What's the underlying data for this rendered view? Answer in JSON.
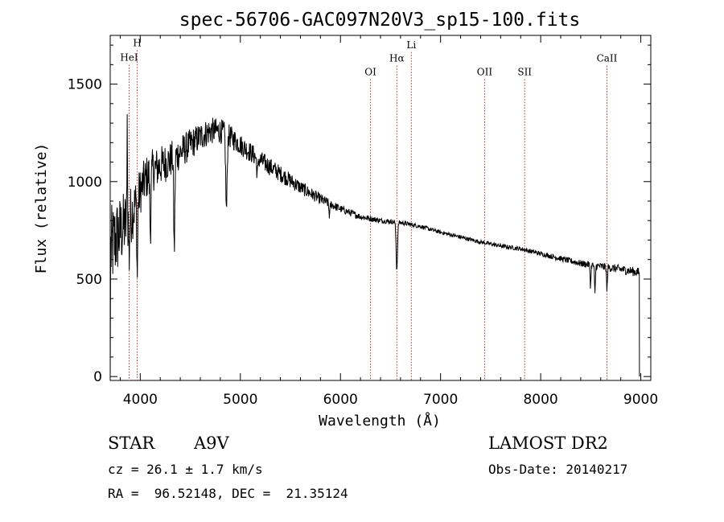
{
  "chart_data": {
    "type": "line",
    "title": "spec-56706-GAC097N20V3_sp15-100.fits",
    "xlabel": "Wavelength (Å)",
    "ylabel": "Flux (relative)",
    "xlim": [
      3700,
      9100
    ],
    "ylim": [
      -20,
      1750
    ],
    "x_ticks": [
      4000,
      5000,
      6000,
      7000,
      8000,
      9000
    ],
    "y_ticks": [
      0,
      500,
      1000,
      1500
    ],
    "grid": false,
    "line_color": "#000000",
    "marker_color": "#b03030",
    "spectral_lines": [
      {
        "name": "HeI",
        "x": 3889,
        "label_y": 1620
      },
      {
        "name": "H",
        "x": 3970,
        "label_y": 1695
      },
      {
        "name": "OI",
        "x": 6300,
        "label_y": 1545
      },
      {
        "name": "Hα",
        "x": 6563,
        "label_y": 1615
      },
      {
        "name": "Li",
        "x": 6708,
        "label_y": 1685
      },
      {
        "name": "OII",
        "x": 7440,
        "label_y": 1545
      },
      {
        "name": "SII",
        "x": 7840,
        "label_y": 1545
      },
      {
        "name": "CaII",
        "x": 8662,
        "label_y": 1615
      }
    ],
    "continuum": [
      [
        3700,
        640
      ],
      [
        3750,
        700
      ],
      [
        3800,
        740
      ],
      [
        3850,
        780
      ],
      [
        3900,
        820
      ],
      [
        3950,
        880
      ],
      [
        4000,
        950
      ],
      [
        4050,
        1010
      ],
      [
        4100,
        1050
      ],
      [
        4200,
        1080
      ],
      [
        4300,
        1110
      ],
      [
        4400,
        1150
      ],
      [
        4500,
        1190
      ],
      [
        4600,
        1230
      ],
      [
        4700,
        1260
      ],
      [
        4800,
        1260
      ],
      [
        4900,
        1230
      ],
      [
        5000,
        1190
      ],
      [
        5200,
        1110
      ],
      [
        5400,
        1040
      ],
      [
        5600,
        970
      ],
      [
        5800,
        910
      ],
      [
        6000,
        860
      ],
      [
        6200,
        820
      ],
      [
        6400,
        800
      ],
      [
        6600,
        790
      ],
      [
        6800,
        770
      ],
      [
        7000,
        740
      ],
      [
        7200,
        715
      ],
      [
        7400,
        690
      ],
      [
        7600,
        670
      ],
      [
        7800,
        655
      ],
      [
        8000,
        630
      ],
      [
        8200,
        605
      ],
      [
        8400,
        580
      ],
      [
        8600,
        565
      ],
      [
        8800,
        550
      ],
      [
        8970,
        535
      ]
    ],
    "absorption": [
      {
        "x": 3889,
        "depth": 200,
        "width": 6
      },
      {
        "x": 3970,
        "depth": 400,
        "width": 6
      },
      {
        "x": 4101,
        "depth": 300,
        "width": 8
      },
      {
        "x": 4340,
        "depth": 480,
        "width": 8
      },
      {
        "x": 4861,
        "depth": 390,
        "width": 10
      },
      {
        "x": 5170,
        "depth": 80,
        "width": 10
      },
      {
        "x": 5890,
        "depth": 60,
        "width": 8
      },
      {
        "x": 6563,
        "depth": 240,
        "width": 10
      },
      {
        "x": 8498,
        "depth": 110,
        "width": 6
      },
      {
        "x": 8542,
        "depth": 150,
        "width": 6
      },
      {
        "x": 8662,
        "depth": 120,
        "width": 6
      }
    ],
    "emission": [
      {
        "x": 3870,
        "height": 700,
        "width": 3
      }
    ],
    "noise": [
      [
        3700,
        230
      ],
      [
        4000,
        120
      ],
      [
        4500,
        80
      ],
      [
        5000,
        55
      ],
      [
        5500,
        40
      ],
      [
        6000,
        20
      ],
      [
        6500,
        12
      ],
      [
        7000,
        10
      ],
      [
        8000,
        12
      ],
      [
        9000,
        25
      ]
    ],
    "edges": [
      {
        "x": 3700,
        "y": 0
      },
      {
        "x": 8985,
        "y": 0
      }
    ]
  },
  "info": {
    "object_type": "STAR",
    "subclass": "A9V",
    "redshift": "cz = 26.1 ± 1.7 km/s",
    "coords": "RA =  96.52148, DEC =  21.35124",
    "survey": "LAMOST DR2",
    "obs_date": "Obs-Date: 20140217"
  }
}
